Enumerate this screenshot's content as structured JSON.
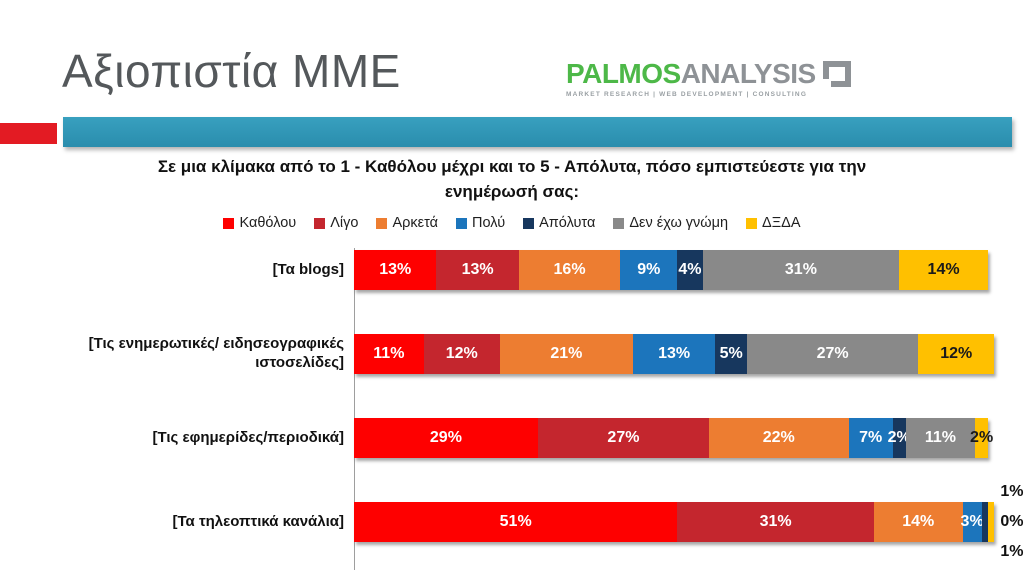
{
  "slide": {
    "title": "Αξιοπιστία ΜΜΕ",
    "logo": {
      "part1": "PALMOS",
      "part2": "ANALYSIS",
      "tagline": "MARKET RESEARCH | WEB DEVELOPMENT | CONSULTING"
    },
    "question": "Σε μια κλίμακα από το 1 - Καθόλου μέχρι και το 5 - Απόλυτα, πόσο εμπιστεύεστε για την ενημέρωσή σας:",
    "accent_colors": {
      "red": "#E31B23",
      "teal": "#2D95B5"
    }
  },
  "chart_data": {
    "type": "bar",
    "orientation": "horizontal",
    "stacked": true,
    "value_format": "percent",
    "axis_max": 100,
    "grid": false,
    "legend_position": "top",
    "legend": [
      {
        "label": "Καθόλου",
        "color": "#FE0000"
      },
      {
        "label": "Λίγο",
        "color": "#C4262E"
      },
      {
        "label": "Αρκετά",
        "color": "#ED7D31"
      },
      {
        "label": "Πολύ",
        "color": "#1C75BC"
      },
      {
        "label": "Απόλυτα",
        "color": "#17375E"
      },
      {
        "label": "Δεν έχω γνώμη",
        "color": "#898989"
      },
      {
        "label": "ΔΞΔΑ",
        "color": "#FFC000"
      }
    ],
    "categories": [
      "[Τα blogs]",
      "[Τις ενημερωτικές/ ειδησεογραφικές ιστοσελίδες]",
      "[Τις εφημερίδες/περιοδικά]",
      "[Τα τηλεοπτικά κανάλια]"
    ],
    "series": [
      {
        "name": "Καθόλου",
        "values": [
          13,
          11,
          29,
          51
        ]
      },
      {
        "name": "Λίγο",
        "values": [
          13,
          12,
          27,
          31
        ]
      },
      {
        "name": "Αρκετά",
        "values": [
          16,
          21,
          22,
          14
        ]
      },
      {
        "name": "Πολύ",
        "values": [
          9,
          13,
          7,
          3
        ]
      },
      {
        "name": "Απόλυτα",
        "values": [
          4,
          5,
          2,
          1
        ]
      },
      {
        "name": "Δεν έχω γνώμη",
        "values": [
          31,
          27,
          11,
          0
        ]
      },
      {
        "name": "ΔΞΔΑ",
        "values": [
          14,
          12,
          2,
          1
        ]
      }
    ]
  }
}
